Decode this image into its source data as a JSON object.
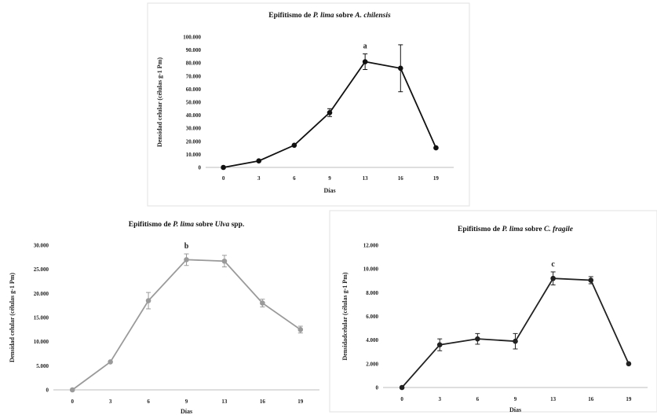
{
  "chart_data": [
    {
      "type": "line",
      "title_parts": [
        {
          "text": "Epifitismo de ",
          "italic": false
        },
        {
          "text": "P. lima",
          "italic": true
        },
        {
          "text": " sobre ",
          "italic": false
        },
        {
          "text": "A. chilensis",
          "italic": true
        }
      ],
      "xlabel": "Días",
      "ylabel": "Densidad celular (células  g-1 Pm)",
      "categories": [
        "0",
        "3",
        "6",
        "9",
        "13",
        "16",
        "19"
      ],
      "ylim": [
        0,
        100000
      ],
      "yticks": [
        "0",
        "10.000",
        "20.000",
        "30.000",
        "40.000",
        "50.000",
        "60.000",
        "70.000",
        "80.000",
        "90.000",
        "100.000"
      ],
      "series": [
        {
          "values": [
            0,
            5000,
            17000,
            42000,
            81000,
            76000,
            15000
          ],
          "errors": [
            0,
            0,
            0,
            3000,
            6000,
            18000,
            0
          ],
          "color": "#111111"
        }
      ],
      "annotation": {
        "text": "a",
        "index": 4
      }
    },
    {
      "type": "line",
      "title_parts": [
        {
          "text": "Epifitismo de ",
          "italic": false
        },
        {
          "text": "P. lima",
          "italic": true
        },
        {
          "text": " sobre ",
          "italic": false
        },
        {
          "text": "Ulva",
          "italic": true
        },
        {
          "text": " spp.",
          "italic": false
        }
      ],
      "xlabel": "Días",
      "ylabel": "Densidad celular (células  g-1 Pm)",
      "categories": [
        "0",
        "3",
        "6",
        "9",
        "13",
        "16",
        "19"
      ],
      "ylim": [
        0,
        30000
      ],
      "yticks": [
        "0",
        "5.000",
        "10.000",
        "15.000",
        "20.000",
        "25.000",
        "30.000"
      ],
      "series": [
        {
          "values": [
            0,
            5800,
            18500,
            27000,
            26700,
            18000,
            12500
          ],
          "errors": [
            0,
            0,
            1700,
            1200,
            1200,
            800,
            700
          ],
          "color": "#9a9a9a"
        }
      ],
      "annotation": {
        "text": "b",
        "index": 3
      }
    },
    {
      "type": "line",
      "title_parts": [
        {
          "text": "Epifitismo de ",
          "italic": false
        },
        {
          "text": "P. lima",
          "italic": true
        },
        {
          "text": " sobre ",
          "italic": false
        },
        {
          "text": "C. fragile",
          "italic": true
        }
      ],
      "xlabel": "Días",
      "ylabel": "Densidadcelular (células  g-1 Pm)",
      "categories": [
        "0",
        "3",
        "6",
        "9",
        "13",
        "16",
        "19"
      ],
      "ylim": [
        0,
        12000
      ],
      "yticks": [
        "0",
        "2.000",
        "4.000",
        "6.000",
        "8.000",
        "10.000",
        "12.000"
      ],
      "series": [
        {
          "values": [
            0,
            3600,
            4100,
            3900,
            9200,
            9050,
            2000
          ],
          "errors": [
            0,
            500,
            450,
            650,
            550,
            300,
            0
          ],
          "color": "#222222"
        }
      ],
      "annotation": {
        "text": "c",
        "index": 4
      }
    }
  ]
}
